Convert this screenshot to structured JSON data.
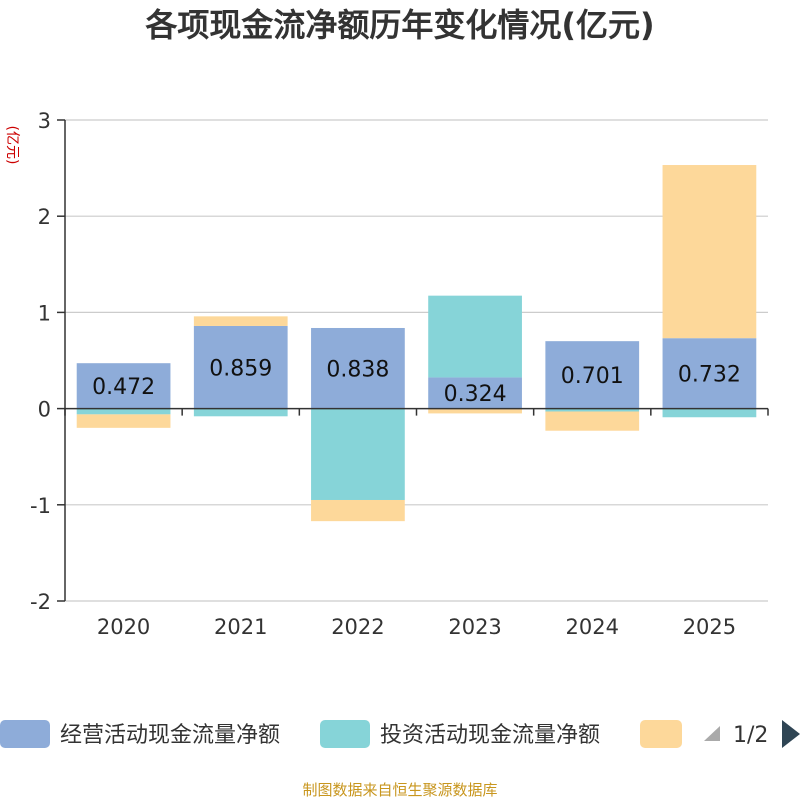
{
  "chart_data": {
    "type": "bar",
    "stacked": true,
    "title": "各项现金流净额历年变化情况(亿元)",
    "ylabel": "(亿元)",
    "xlabel": "",
    "ylim": [
      -2,
      3
    ],
    "yticks": [
      3,
      2,
      1,
      0,
      -1,
      -2
    ],
    "grid": true,
    "categories": [
      "2020",
      "2021",
      "2022",
      "2023",
      "2024",
      "2025"
    ],
    "series": [
      {
        "name": "经营活动现金流量净额",
        "color": "#8eacd9",
        "values": [
          0.472,
          0.859,
          0.838,
          0.324,
          0.701,
          0.732
        ],
        "labels": [
          "0.472",
          "0.859",
          "0.838",
          "0.324",
          "0.701",
          "0.732"
        ]
      },
      {
        "name": "投资活动现金流量净额",
        "color": "#86d4d8",
        "values": [
          -0.06,
          -0.08,
          -0.95,
          0.85,
          -0.03,
          -0.09
        ]
      },
      {
        "name": "",
        "color": "#fdd89a",
        "values": [
          -0.14,
          0.1,
          -0.22,
          -0.05,
          -0.2,
          1.8
        ]
      }
    ],
    "legend": {
      "position": "bottom",
      "page": "1/2"
    },
    "source": "制图数据来自恒生聚源数据库"
  }
}
